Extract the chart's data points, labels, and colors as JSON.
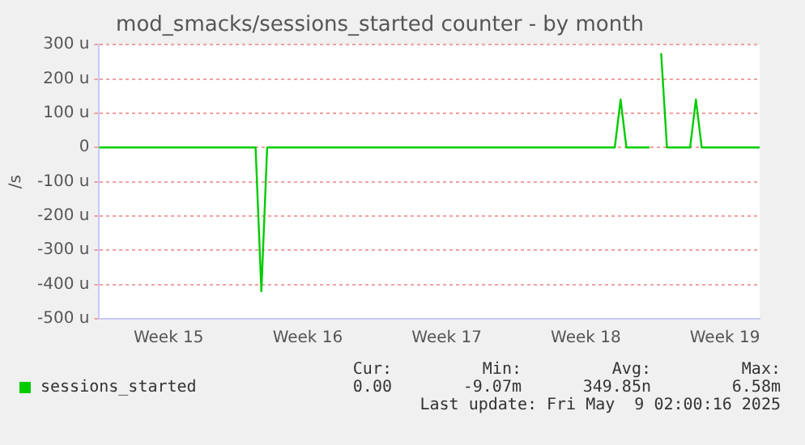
{
  "chart_data": {
    "type": "line",
    "title": "mod_smacks/sessions_started counter - by month",
    "ylabel": "/s",
    "categories": [
      null,
      null,
      null,
      null,
      null,
      null,
      null,
      null,
      null,
      null,
      null,
      null,
      "Week 15",
      null,
      null,
      null,
      null,
      null,
      null,
      null,
      null,
      null,
      null,
      null,
      null,
      null,
      null,
      null,
      null,
      null,
      null,
      null,
      null,
      null,
      null,
      null,
      "Week 16",
      null,
      null,
      null,
      null,
      null,
      null,
      null,
      null,
      null,
      null,
      null,
      null,
      null,
      null,
      null,
      null,
      null,
      null,
      null,
      null,
      null,
      null,
      null,
      "Week 17",
      null,
      null,
      null,
      null,
      null,
      null,
      null,
      null,
      null,
      null,
      null,
      null,
      null,
      null,
      null,
      null,
      null,
      null,
      null,
      null,
      null,
      null,
      null,
      "Week 18",
      null,
      null,
      null,
      null,
      null,
      null,
      null,
      null,
      null,
      null,
      null,
      null,
      null,
      null,
      null,
      null,
      null,
      null,
      null,
      null,
      null,
      null,
      null,
      "Week 19",
      null,
      null,
      null,
      null,
      null,
      null
    ],
    "series": [
      {
        "name": "sessions_started",
        "color": "#00cc00",
        "values": [
          0,
          0,
          0,
          0,
          0,
          0,
          0,
          0,
          0,
          0,
          0,
          0,
          0,
          0,
          0,
          0,
          0,
          0,
          0,
          0,
          0,
          0,
          0,
          0,
          0,
          0,
          0,
          0,
          -420,
          0,
          0,
          0,
          0,
          0,
          0,
          0,
          0,
          0,
          0,
          0,
          0,
          0,
          0,
          0,
          0,
          0,
          0,
          0,
          0,
          0,
          0,
          0,
          0,
          0,
          0,
          0,
          0,
          0,
          0,
          0,
          0,
          0,
          0,
          0,
          0,
          0,
          0,
          0,
          0,
          0,
          0,
          0,
          0,
          0,
          0,
          0,
          0,
          0,
          0,
          0,
          0,
          0,
          0,
          0,
          0,
          0,
          0,
          0,
          0,
          0,
          140,
          0,
          0,
          0,
          0,
          0,
          null,
          275,
          0,
          0,
          0,
          0,
          0,
          140,
          0,
          0,
          0,
          0,
          0,
          0,
          0,
          0,
          0,
          0,
          0
        ]
      }
    ],
    "ylim": [
      -500,
      300
    ],
    "yticks": [
      {
        "value": -500,
        "label": "-500 u"
      },
      {
        "value": -400,
        "label": "-400 u"
      },
      {
        "value": -300,
        "label": "-300 u"
      },
      {
        "value": -200,
        "label": "-200 u"
      },
      {
        "value": -100,
        "label": "-100 u"
      },
      0,
      {
        "value": 100,
        "label": "100 u"
      },
      {
        "value": 200,
        "label": "200 u"
      },
      {
        "value": 300,
        "label": "300 u"
      }
    ],
    "grid": "y",
    "legend": "bottom",
    "marker": "none",
    "line_style": "solid",
    "annotations": [
      "Cur:",
      "0.00",
      "Min:",
      "-9.07m",
      "Avg:",
      "349.85n",
      "Max:",
      "6.58m",
      "Last update: Fri May  9 02:00:16 2025"
    ]
  }
}
